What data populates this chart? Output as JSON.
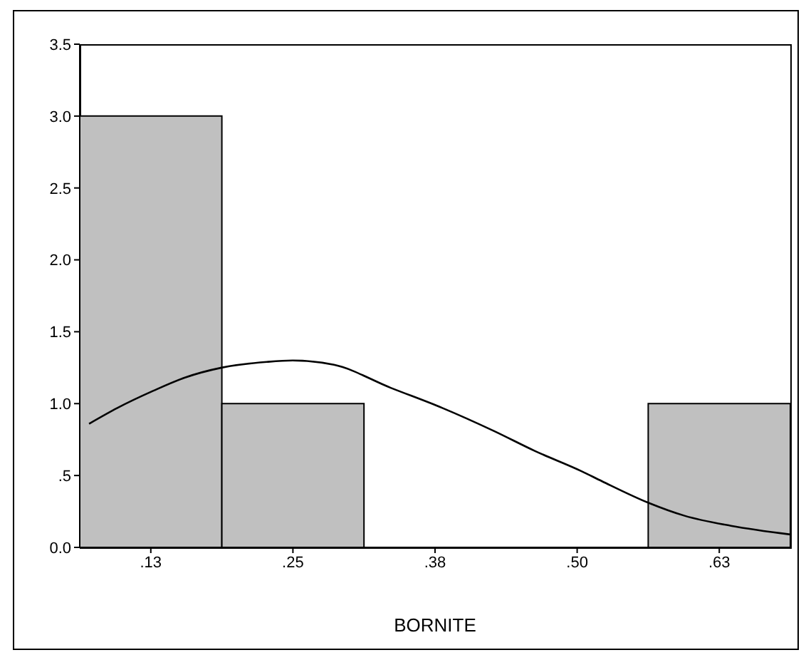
{
  "chart_data": {
    "type": "histogram",
    "xlabel": "BORNITE",
    "color": "#c0c0c0",
    "bins": [
      0.0625,
      0.1875,
      0.3125,
      0.4375,
      0.5625,
      0.6875
    ],
    "values": [
      3,
      1,
      0,
      0,
      1
    ],
    "series": [
      {
        "type": "line",
        "color": "#000000",
        "x": [
          0.0707,
          0.0956,
          0.1274,
          0.1546,
          0.1872,
          0.2271,
          0.2498,
          0.2861,
          0.336,
          0.3814,
          0.4267,
          0.463,
          0.5038,
          0.5219,
          0.5628,
          0.5945,
          0.6353,
          0.6875
        ],
        "values": [
          0.86,
          0.97,
          1.09,
          1.18,
          1.25,
          1.29,
          1.3,
          1.27,
          1.11,
          0.97,
          0.81,
          0.67,
          0.53,
          0.46,
          0.31,
          0.22,
          0.15,
          0.09
        ]
      }
    ],
    "xlim": [
      0.0625,
      0.6875
    ],
    "xticks": [
      {
        "value": 0.125,
        "label": ".13"
      },
      {
        "value": 0.25,
        "label": ".25"
      },
      {
        "value": 0.375,
        "label": ".38"
      },
      {
        "value": 0.5,
        "label": ".50"
      },
      {
        "value": 0.625,
        "label": ".63"
      }
    ],
    "ylim": [
      0,
      3.5
    ],
    "yticks": [
      {
        "value": 0,
        "label": "0.0"
      },
      {
        "value": 0.5,
        "label": ".5"
      },
      {
        "value": 1,
        "label": "1.0"
      },
      {
        "value": 1.5,
        "label": "1.5"
      },
      {
        "value": 2,
        "label": "2.0"
      },
      {
        "value": 2.5,
        "label": "2.5"
      },
      {
        "value": 3,
        "label": "3.0"
      },
      {
        "value": 3.5,
        "label": "3.5"
      }
    ],
    "marker": "none",
    "line_style": "solid",
    "grid": false,
    "legend": false
  }
}
